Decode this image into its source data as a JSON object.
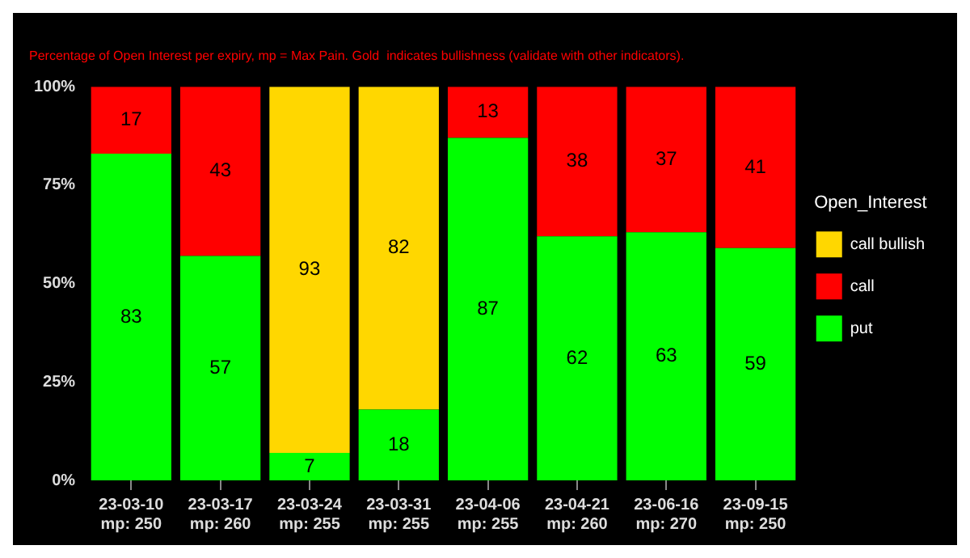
{
  "chart_data": {
    "type": "bar",
    "subtitle": "Percentage of Open Interest per expiry, mp = Max Pain. Gold  indicates bullishness (validate with other indicators).",
    "categories": [
      "23-03-10\nmp: 250",
      "23-03-17\nmp: 260",
      "23-03-24\nmp: 255",
      "23-03-31\nmp: 255",
      "23-04-06\nmp: 255",
      "23-04-21\nmp: 260",
      "23-06-16\nmp: 270",
      "23-09-15\nmp: 250"
    ],
    "stacked": true,
    "legend_title": "Open_Interest",
    "legend": "right",
    "data_labels": true,
    "grid": false,
    "series": [
      {
        "name": "put",
        "color": "#00ff00",
        "values": [
          83,
          57,
          7,
          18,
          87,
          62,
          63,
          59
        ]
      },
      {
        "name": "call",
        "color": "#ff0000",
        "values": [
          17,
          43,
          null,
          null,
          13,
          38,
          37,
          41
        ]
      },
      {
        "name": "call bullish",
        "color": "#ffd700",
        "values": [
          null,
          null,
          93,
          82,
          null,
          null,
          null,
          null
        ]
      }
    ],
    "ylim": [
      0,
      100
    ],
    "yticks": [
      {
        "value": 0,
        "label": "0%"
      },
      {
        "value": 25,
        "label": "25%"
      },
      {
        "value": 50,
        "label": "50%"
      },
      {
        "value": 75,
        "label": "75%"
      },
      {
        "value": 100,
        "label": "100%"
      }
    ]
  }
}
